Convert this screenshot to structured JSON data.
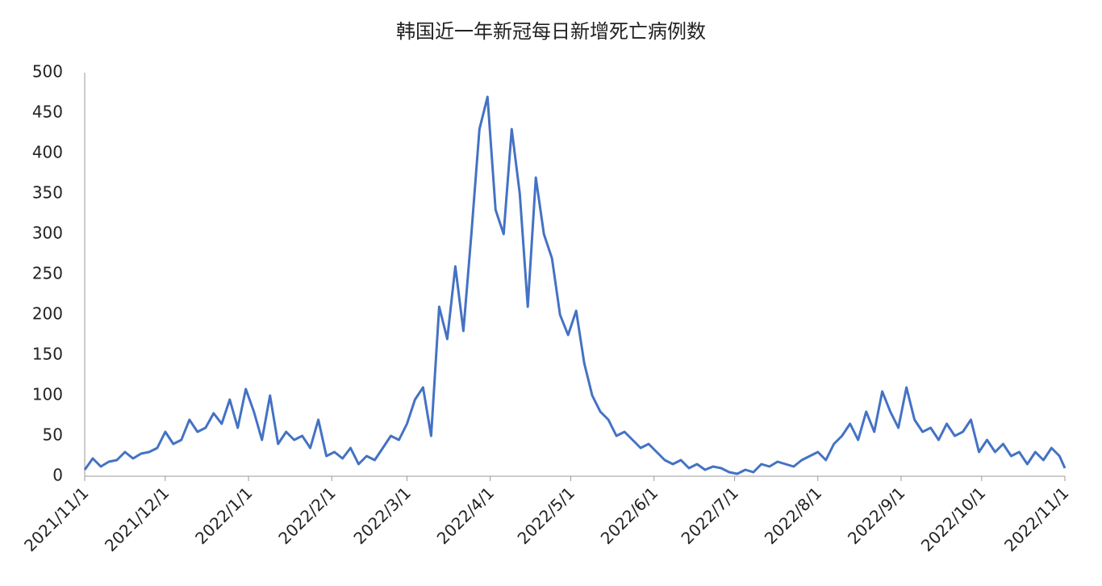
{
  "chart_data": {
    "type": "line",
    "title": "韩国近一年新冠每日新增死亡病例数",
    "x": [
      "2021/11/1",
      "2021/11/4",
      "2021/11/7",
      "2021/11/10",
      "2021/11/13",
      "2021/11/16",
      "2021/11/19",
      "2021/11/22",
      "2021/11/25",
      "2021/11/28",
      "2021/12/1",
      "2021/12/4",
      "2021/12/7",
      "2021/12/10",
      "2021/12/13",
      "2021/12/16",
      "2021/12/19",
      "2021/12/22",
      "2021/12/25",
      "2021/12/28",
      "2021/12/31",
      "2022/1/3",
      "2022/1/6",
      "2022/1/9",
      "2022/1/12",
      "2022/1/15",
      "2022/1/18",
      "2022/1/21",
      "2022/1/24",
      "2022/1/27",
      "2022/1/30",
      "2022/2/2",
      "2022/2/5",
      "2022/2/8",
      "2022/2/11",
      "2022/2/14",
      "2022/2/17",
      "2022/2/20",
      "2022/2/23",
      "2022/2/26",
      "2022/3/1",
      "2022/3/4",
      "2022/3/7",
      "2022/3/10",
      "2022/3/13",
      "2022/3/16",
      "2022/3/19",
      "2022/3/22",
      "2022/3/25",
      "2022/3/28",
      "2022/3/31",
      "2022/4/3",
      "2022/4/6",
      "2022/4/9",
      "2022/4/12",
      "2022/4/15",
      "2022/4/18",
      "2022/4/21",
      "2022/4/24",
      "2022/4/27",
      "2022/4/30",
      "2022/5/3",
      "2022/5/6",
      "2022/5/9",
      "2022/5/12",
      "2022/5/15",
      "2022/5/18",
      "2022/5/21",
      "2022/5/24",
      "2022/5/27",
      "2022/5/30",
      "2022/6/2",
      "2022/6/5",
      "2022/6/8",
      "2022/6/11",
      "2022/6/14",
      "2022/6/17",
      "2022/6/20",
      "2022/6/23",
      "2022/6/26",
      "2022/6/29",
      "2022/7/2",
      "2022/7/5",
      "2022/7/8",
      "2022/7/11",
      "2022/7/14",
      "2022/7/17",
      "2022/7/20",
      "2022/7/23",
      "2022/7/26",
      "2022/7/29",
      "2022/8/1",
      "2022/8/4",
      "2022/8/7",
      "2022/8/10",
      "2022/8/13",
      "2022/8/16",
      "2022/8/19",
      "2022/8/22",
      "2022/8/25",
      "2022/8/28",
      "2022/8/31",
      "2022/9/3",
      "2022/9/6",
      "2022/9/9",
      "2022/9/12",
      "2022/9/15",
      "2022/9/18",
      "2022/9/21",
      "2022/9/24",
      "2022/9/27",
      "2022/9/30",
      "2022/10/3",
      "2022/10/6",
      "2022/10/9",
      "2022/10/12",
      "2022/10/15",
      "2022/10/18",
      "2022/10/21",
      "2022/10/24",
      "2022/10/27",
      "2022/10/30",
      "2022/11/1"
    ],
    "series": [
      {
        "color": "#4472c4",
        "values": [
          8,
          22,
          12,
          18,
          20,
          30,
          22,
          28,
          30,
          35,
          55,
          40,
          45,
          70,
          55,
          60,
          78,
          65,
          95,
          60,
          108,
          80,
          45,
          100,
          40,
          55,
          45,
          50,
          35,
          70,
          25,
          30,
          22,
          35,
          15,
          25,
          20,
          35,
          50,
          45,
          65,
          95,
          110,
          50,
          210,
          170,
          260,
          180,
          300,
          430,
          470,
          330,
          300,
          430,
          350,
          210,
          370,
          300,
          270,
          200,
          175,
          205,
          140,
          100,
          80,
          70,
          50,
          55,
          45,
          35,
          40,
          30,
          20,
          15,
          20,
          10,
          15,
          8,
          12,
          10,
          5,
          3,
          8,
          5,
          15,
          12,
          18,
          15,
          12,
          20,
          25,
          30,
          20,
          40,
          50,
          65,
          45,
          80,
          55,
          105,
          80,
          60,
          110,
          70,
          55,
          60,
          45,
          65,
          50,
          55,
          70,
          30,
          45,
          30,
          40,
          25,
          30,
          15,
          30,
          20,
          35,
          25,
          10
        ]
      }
    ],
    "xlim": [
      "2021/11/1",
      "2022/11/1"
    ],
    "xticks": [
      "2021/11/1",
      "2021/12/1",
      "2022/1/1",
      "2022/2/1",
      "2022/3/1",
      "2022/4/1",
      "2022/5/1",
      "2022/6/1",
      "2022/7/1",
      "2022/8/1",
      "2022/9/1",
      "2022/10/1",
      "2022/11/1"
    ],
    "ylim": [
      0,
      500
    ],
    "yticks": [
      0,
      50,
      100,
      150,
      200,
      250,
      300,
      350,
      400,
      450,
      500
    ],
    "grid": false
  }
}
